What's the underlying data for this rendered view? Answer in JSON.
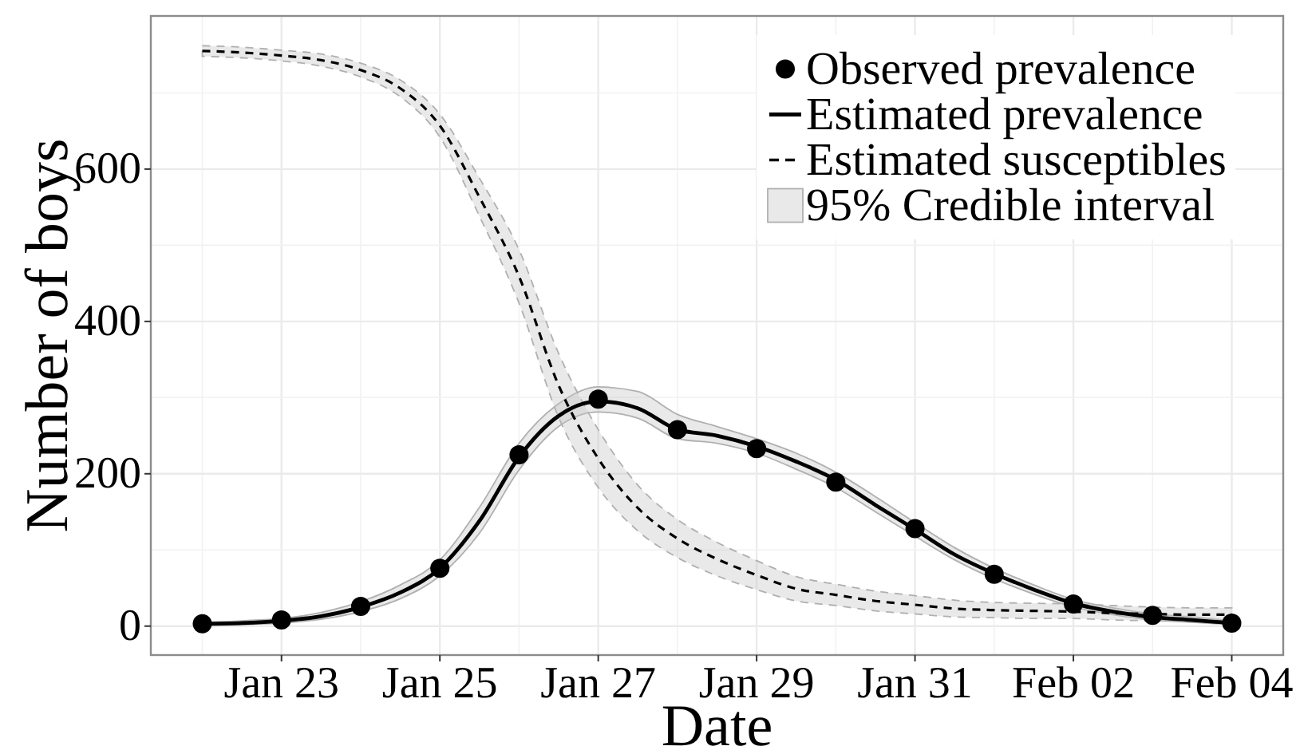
{
  "chart_data": {
    "type": "line",
    "xlabel": "Date",
    "ylabel": "Number of boys",
    "xlim": [
      "--01-21T08:24",
      "--02-04T15:36"
    ],
    "xticks": [
      {
        "value": "--01-23",
        "label": "Jan 23"
      },
      {
        "value": "--01-25",
        "label": "Jan 25"
      },
      {
        "value": "--01-27",
        "label": "Jan 27"
      },
      {
        "value": "--01-29",
        "label": "Jan 29"
      },
      {
        "value": "--01-31",
        "label": "Jan 31"
      },
      {
        "value": "--02-02",
        "label": "Feb 02"
      },
      {
        "value": "--02-04",
        "label": "Feb 04"
      }
    ],
    "ylim": [
      -38,
      801
    ],
    "yticks": [
      0,
      200,
      400,
      600
    ],
    "grid": true,
    "legend": "top right",
    "annotations": [
      "95% Credible interval"
    ],
    "series": [
      {
        "name": "Observed prevalence",
        "type": "scatter",
        "marker": "circle",
        "color": "#000000",
        "x": [
          "--01-22",
          "--01-23",
          "--01-24",
          "--01-25",
          "--01-26",
          "--01-27",
          "--01-28",
          "--01-29",
          "--01-30",
          "--01-31",
          "--02-01",
          "--02-02",
          "--02-03",
          "--02-04"
        ],
        "values": [
          3,
          8,
          26,
          76,
          225,
          298,
          258,
          233,
          189,
          128,
          68,
          29,
          14,
          4
        ]
      },
      {
        "name": "Estimated prevalence",
        "line_style": "solid",
        "color": "#000000",
        "x": [
          "--01-22",
          "--01-22T12:00",
          "--01-23",
          "--01-23T12:00",
          "--01-24",
          "--01-24T12:00",
          "--01-25",
          "--01-25T12:00",
          "--01-26",
          "--01-26T12:00",
          "--01-27",
          "--01-27T12:00",
          "--01-28",
          "--01-28T12:00",
          "--01-29",
          "--01-29T12:00",
          "--01-30",
          "--01-30T12:00",
          "--01-31",
          "--01-31T12:00",
          "--02-01",
          "--02-01T12:00",
          "--02-02",
          "--02-02T12:00",
          "--02-03",
          "--02-03T12:00",
          "--02-04"
        ],
        "values": [
          3,
          4,
          7,
          13,
          25,
          44,
          76,
          138,
          222,
          276,
          295,
          286,
          258,
          250,
          236,
          216,
          192,
          159,
          127,
          94,
          69,
          48,
          30,
          19,
          12,
          8,
          4
        ],
        "lower": [
          1,
          2,
          4,
          9,
          19,
          36,
          66,
          122,
          205,
          262,
          281,
          273,
          246,
          240,
          227,
          206,
          182,
          150,
          118,
          87,
          62,
          42,
          25,
          15,
          8,
          5,
          2
        ],
        "upper": [
          5,
          7,
          10,
          18,
          32,
          54,
          87,
          156,
          240,
          292,
          314,
          308,
          278,
          262,
          246,
          227,
          202,
          170,
          136,
          103,
          76,
          54,
          35,
          24,
          16,
          12,
          7
        ]
      },
      {
        "name": "Estimated susceptibles",
        "line_style": "dashed",
        "color": "#000000",
        "x": [
          "--01-22",
          "--01-22T12:00",
          "--01-23",
          "--01-23T12:00",
          "--01-24",
          "--01-24T12:00",
          "--01-25",
          "--01-25T12:00",
          "--01-26",
          "--01-26T12:00",
          "--01-27",
          "--01-27T12:00",
          "--01-28",
          "--01-28T12:00",
          "--01-29",
          "--01-29T12:00",
          "--01-30",
          "--01-30T12:00",
          "--01-31",
          "--01-31T12:00",
          "--02-01",
          "--02-01T12:00",
          "--02-02",
          "--02-02T12:00",
          "--02-03",
          "--02-03T12:00",
          "--02-04"
        ],
        "values": [
          755,
          753,
          749,
          743,
          730,
          706,
          657,
          563,
          459,
          316,
          220,
          155,
          115,
          88,
          67,
          49,
          41,
          33,
          28,
          23,
          21,
          20,
          19,
          17,
          16,
          15,
          15
        ],
        "lower": [
          748,
          746,
          742,
          735,
          721,
          695,
          642,
          538,
          424,
          274,
          182,
          125,
          90,
          66,
          48,
          33,
          27,
          20,
          16,
          12,
          11,
          10,
          10,
          8,
          7,
          6,
          6
        ],
        "upper": [
          762,
          760,
          756,
          751,
          739,
          717,
          672,
          588,
          494,
          358,
          258,
          185,
          140,
          110,
          86,
          65,
          55,
          46,
          40,
          34,
          31,
          30,
          29,
          27,
          25,
          24,
          24
        ]
      }
    ]
  }
}
